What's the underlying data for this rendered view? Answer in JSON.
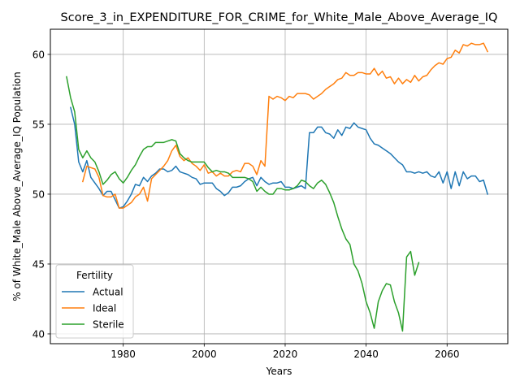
{
  "chart_data": {
    "type": "line",
    "title": "Score_3_in_EXPENDITURE_FOR_CRIME_for_White_Male_Above_Average_IQ",
    "xlabel": "Years",
    "ylabel": "% of White_Male Above_Average_IQ Population",
    "xlim": [
      1962,
      2075
    ],
    "ylim": [
      39.3,
      61.8
    ],
    "x_ticks": [
      1980,
      2000,
      2020,
      2040,
      2060
    ],
    "y_ticks": [
      40,
      45,
      50,
      55,
      60
    ],
    "grid": true,
    "legend": {
      "title": "Fertility",
      "position": "lower-left"
    },
    "series": [
      {
        "name": "Actual",
        "color": "#1f77b4",
        "points": [
          [
            1967,
            56.2
          ],
          [
            1968,
            55.0
          ],
          [
            1969,
            52.3
          ],
          [
            1970,
            51.6
          ],
          [
            1971,
            52.4
          ],
          [
            1972,
            51.2
          ],
          [
            1973,
            50.8
          ],
          [
            1974,
            50.4
          ],
          [
            1975,
            49.9
          ],
          [
            1976,
            50.2
          ],
          [
            1977,
            50.2
          ],
          [
            1978,
            49.6
          ],
          [
            1979,
            49.0
          ],
          [
            1980,
            49.1
          ],
          [
            1981,
            49.5
          ],
          [
            1982,
            50.0
          ],
          [
            1983,
            50.7
          ],
          [
            1984,
            50.6
          ],
          [
            1985,
            51.2
          ],
          [
            1986,
            50.9
          ],
          [
            1987,
            51.3
          ],
          [
            1988,
            51.5
          ],
          [
            1989,
            51.8
          ],
          [
            1990,
            51.8
          ],
          [
            1991,
            51.6
          ],
          [
            1992,
            51.7
          ],
          [
            1993,
            52.0
          ],
          [
            1994,
            51.6
          ],
          [
            1995,
            51.5
          ],
          [
            1996,
            51.4
          ],
          [
            1997,
            51.2
          ],
          [
            1998,
            51.1
          ],
          [
            1999,
            50.7
          ],
          [
            2000,
            50.8
          ],
          [
            2001,
            50.8
          ],
          [
            2002,
            50.8
          ],
          [
            2003,
            50.4
          ],
          [
            2004,
            50.2
          ],
          [
            2005,
            49.9
          ],
          [
            2006,
            50.1
          ],
          [
            2007,
            50.5
          ],
          [
            2008,
            50.5
          ],
          [
            2009,
            50.6
          ],
          [
            2010,
            50.9
          ],
          [
            2011,
            51.1
          ],
          [
            2012,
            51.2
          ],
          [
            2013,
            50.6
          ],
          [
            2014,
            51.2
          ],
          [
            2015,
            50.9
          ],
          [
            2016,
            50.7
          ],
          [
            2017,
            50.8
          ],
          [
            2018,
            50.8
          ],
          [
            2019,
            50.9
          ],
          [
            2020,
            50.5
          ],
          [
            2021,
            50.5
          ],
          [
            2022,
            50.4
          ],
          [
            2023,
            50.5
          ],
          [
            2024,
            50.6
          ],
          [
            2025,
            50.4
          ],
          [
            2026,
            54.4
          ],
          [
            2027,
            54.4
          ],
          [
            2028,
            54.8
          ],
          [
            2029,
            54.8
          ],
          [
            2030,
            54.4
          ],
          [
            2031,
            54.3
          ],
          [
            2032,
            54.0
          ],
          [
            2033,
            54.6
          ],
          [
            2034,
            54.2
          ],
          [
            2035,
            54.8
          ],
          [
            2036,
            54.7
          ],
          [
            2037,
            55.1
          ],
          [
            2038,
            54.8
          ],
          [
            2039,
            54.7
          ],
          [
            2040,
            54.6
          ],
          [
            2041,
            54.0
          ],
          [
            2042,
            53.6
          ],
          [
            2043,
            53.5
          ],
          [
            2044,
            53.3
          ],
          [
            2045,
            53.1
          ],
          [
            2046,
            52.9
          ],
          [
            2047,
            52.6
          ],
          [
            2048,
            52.3
          ],
          [
            2049,
            52.1
          ],
          [
            2050,
            51.6
          ],
          [
            2051,
            51.6
          ],
          [
            2052,
            51.5
          ],
          [
            2053,
            51.6
          ],
          [
            2054,
            51.5
          ],
          [
            2055,
            51.6
          ],
          [
            2056,
            51.3
          ],
          [
            2057,
            51.2
          ],
          [
            2058,
            51.6
          ],
          [
            2059,
            50.8
          ],
          [
            2060,
            51.6
          ],
          [
            2061,
            50.4
          ],
          [
            2062,
            51.6
          ],
          [
            2063,
            50.6
          ],
          [
            2064,
            51.6
          ],
          [
            2065,
            51.1
          ],
          [
            2066,
            51.3
          ],
          [
            2067,
            51.3
          ],
          [
            2068,
            50.9
          ],
          [
            2069,
            51.0
          ],
          [
            2070,
            50.0
          ]
        ]
      },
      {
        "name": "Ideal",
        "color": "#ff7f0e",
        "points": [
          [
            1970,
            50.9
          ],
          [
            1971,
            52.0
          ],
          [
            1972,
            51.9
          ],
          [
            1973,
            51.8
          ],
          [
            1974,
            51.2
          ],
          [
            1975,
            49.9
          ],
          [
            1976,
            49.8
          ],
          [
            1977,
            49.8
          ],
          [
            1978,
            50.0
          ],
          [
            1979,
            49.0
          ],
          [
            1980,
            49.0
          ],
          [
            1981,
            49.2
          ],
          [
            1982,
            49.4
          ],
          [
            1983,
            49.8
          ],
          [
            1984,
            50.0
          ],
          [
            1985,
            50.5
          ],
          [
            1986,
            49.5
          ],
          [
            1987,
            51.1
          ],
          [
            1988,
            51.4
          ],
          [
            1989,
            51.7
          ],
          [
            1990,
            52.0
          ],
          [
            1991,
            52.4
          ],
          [
            1992,
            53.1
          ],
          [
            1993,
            53.5
          ],
          [
            1994,
            52.7
          ],
          [
            1995,
            52.4
          ],
          [
            1996,
            52.6
          ],
          [
            1997,
            52.2
          ],
          [
            1998,
            52.0
          ],
          [
            1999,
            51.7
          ],
          [
            2000,
            52.1
          ],
          [
            2001,
            51.5
          ],
          [
            2002,
            51.6
          ],
          [
            2003,
            51.3
          ],
          [
            2004,
            51.5
          ],
          [
            2005,
            51.3
          ],
          [
            2006,
            51.3
          ],
          [
            2007,
            51.6
          ],
          [
            2008,
            51.7
          ],
          [
            2009,
            51.6
          ],
          [
            2010,
            52.2
          ],
          [
            2011,
            52.2
          ],
          [
            2012,
            52.0
          ],
          [
            2013,
            51.4
          ],
          [
            2014,
            52.4
          ],
          [
            2015,
            52.0
          ],
          [
            2016,
            57.0
          ],
          [
            2017,
            56.8
          ],
          [
            2018,
            57.0
          ],
          [
            2019,
            56.9
          ],
          [
            2020,
            56.7
          ],
          [
            2021,
            57.0
          ],
          [
            2022,
            56.9
          ],
          [
            2023,
            57.2
          ],
          [
            2024,
            57.2
          ],
          [
            2025,
            57.2
          ],
          [
            2026,
            57.1
          ],
          [
            2027,
            56.8
          ],
          [
            2028,
            57.0
          ],
          [
            2029,
            57.2
          ],
          [
            2030,
            57.5
          ],
          [
            2031,
            57.7
          ],
          [
            2032,
            57.9
          ],
          [
            2033,
            58.2
          ],
          [
            2034,
            58.3
          ],
          [
            2035,
            58.7
          ],
          [
            2036,
            58.5
          ],
          [
            2037,
            58.5
          ],
          [
            2038,
            58.7
          ],
          [
            2039,
            58.7
          ],
          [
            2040,
            58.6
          ],
          [
            2041,
            58.6
          ],
          [
            2042,
            59.0
          ],
          [
            2043,
            58.5
          ],
          [
            2044,
            58.8
          ],
          [
            2045,
            58.3
          ],
          [
            2046,
            58.4
          ],
          [
            2047,
            57.9
          ],
          [
            2048,
            58.3
          ],
          [
            2049,
            57.9
          ],
          [
            2050,
            58.2
          ],
          [
            2051,
            58.0
          ],
          [
            2052,
            58.5
          ],
          [
            2053,
            58.1
          ],
          [
            2054,
            58.4
          ],
          [
            2055,
            58.5
          ],
          [
            2056,
            58.9
          ],
          [
            2057,
            59.2
          ],
          [
            2058,
            59.4
          ],
          [
            2059,
            59.3
          ],
          [
            2060,
            59.7
          ],
          [
            2061,
            59.8
          ],
          [
            2062,
            60.3
          ],
          [
            2063,
            60.1
          ],
          [
            2064,
            60.7
          ],
          [
            2065,
            60.6
          ],
          [
            2066,
            60.8
          ],
          [
            2067,
            60.7
          ],
          [
            2068,
            60.7
          ],
          [
            2069,
            60.8
          ],
          [
            2070,
            60.2
          ]
        ]
      },
      {
        "name": "Sterile",
        "color": "#2ca02c",
        "points": [
          [
            1966,
            58.4
          ],
          [
            1967,
            56.9
          ],
          [
            1968,
            55.9
          ],
          [
            1969,
            53.2
          ],
          [
            1970,
            52.6
          ],
          [
            1971,
            53.1
          ],
          [
            1972,
            52.6
          ],
          [
            1973,
            52.3
          ],
          [
            1974,
            51.6
          ],
          [
            1975,
            50.7
          ],
          [
            1976,
            51.0
          ],
          [
            1977,
            51.4
          ],
          [
            1978,
            51.6
          ],
          [
            1979,
            51.1
          ],
          [
            1980,
            50.8
          ],
          [
            1981,
            51.2
          ],
          [
            1982,
            51.7
          ],
          [
            1983,
            52.1
          ],
          [
            1984,
            52.7
          ],
          [
            1985,
            53.2
          ],
          [
            1986,
            53.4
          ],
          [
            1987,
            53.4
          ],
          [
            1988,
            53.7
          ],
          [
            1989,
            53.7
          ],
          [
            1990,
            53.7
          ],
          [
            1991,
            53.8
          ],
          [
            1992,
            53.9
          ],
          [
            1993,
            53.8
          ],
          [
            1994,
            52.9
          ],
          [
            1995,
            52.6
          ],
          [
            1996,
            52.4
          ],
          [
            1997,
            52.3
          ],
          [
            1998,
            52.3
          ],
          [
            1999,
            52.3
          ],
          [
            2000,
            52.3
          ],
          [
            2001,
            51.9
          ],
          [
            2002,
            51.6
          ],
          [
            2003,
            51.7
          ],
          [
            2004,
            51.6
          ],
          [
            2005,
            51.6
          ],
          [
            2006,
            51.5
          ],
          [
            2007,
            51.2
          ],
          [
            2008,
            51.2
          ],
          [
            2009,
            51.2
          ],
          [
            2010,
            51.2
          ],
          [
            2011,
            51.1
          ],
          [
            2012,
            50.9
          ],
          [
            2013,
            50.2
          ],
          [
            2014,
            50.5
          ],
          [
            2015,
            50.2
          ],
          [
            2016,
            50.0
          ],
          [
            2017,
            50.0
          ],
          [
            2018,
            50.4
          ],
          [
            2019,
            50.4
          ],
          [
            2020,
            50.3
          ],
          [
            2021,
            50.3
          ],
          [
            2022,
            50.4
          ],
          [
            2023,
            50.6
          ],
          [
            2024,
            51.0
          ],
          [
            2025,
            50.9
          ],
          [
            2026,
            50.6
          ],
          [
            2027,
            50.4
          ],
          [
            2028,
            50.8
          ],
          [
            2029,
            51.0
          ],
          [
            2030,
            50.7
          ],
          [
            2031,
            50.1
          ],
          [
            2032,
            49.4
          ],
          [
            2033,
            48.4
          ],
          [
            2034,
            47.5
          ],
          [
            2035,
            46.8
          ],
          [
            2036,
            46.4
          ],
          [
            2037,
            45.0
          ],
          [
            2038,
            44.5
          ],
          [
            2039,
            43.6
          ],
          [
            2040,
            42.3
          ],
          [
            2041,
            41.5
          ],
          [
            2042,
            40.4
          ],
          [
            2043,
            42.3
          ],
          [
            2044,
            43.1
          ],
          [
            2045,
            43.6
          ],
          [
            2046,
            43.5
          ],
          [
            2047,
            42.3
          ],
          [
            2048,
            41.5
          ],
          [
            2049,
            40.2
          ],
          [
            2050,
            45.5
          ],
          [
            2051,
            45.9
          ],
          [
            2052,
            44.2
          ],
          [
            2053,
            45.1
          ]
        ]
      }
    ]
  }
}
